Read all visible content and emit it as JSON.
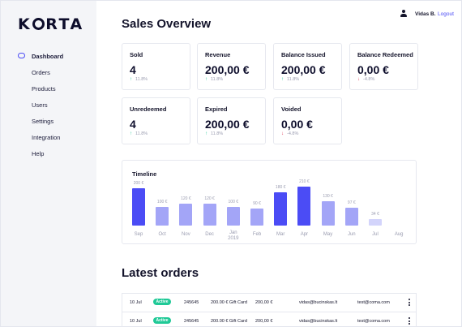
{
  "brand": {
    "name_prefix": "K",
    "name_suffix": "RTA"
  },
  "sidebar": {
    "items": [
      {
        "label": "Dashboard",
        "active": true
      },
      {
        "label": "Orders"
      },
      {
        "label": "Products"
      },
      {
        "label": "Users"
      },
      {
        "label": "Settings"
      },
      {
        "label": "Integration"
      },
      {
        "label": "Help"
      }
    ]
  },
  "header": {
    "user_name": "Vidas B.",
    "logout_label": "Logout"
  },
  "page_title": "Sales Overview",
  "stats": [
    {
      "label": "Sold",
      "value": "4",
      "change": "11.8%",
      "trend": "up"
    },
    {
      "label": "Revenue",
      "value": "200,00 €",
      "change": "11.8%",
      "trend": "up"
    },
    {
      "label": "Balance Issued",
      "value": "200,00 €",
      "change": "11.8%",
      "trend": "up"
    },
    {
      "label": "Balance Redeemed",
      "value": "0,00 €",
      "change": "-4.8%",
      "trend": "down"
    },
    {
      "label": "Unredeemed",
      "value": "4",
      "change": "11.8%",
      "trend": "up"
    },
    {
      "label": "Expired",
      "value": "200,00 €",
      "change": "11.8%",
      "trend": "up"
    },
    {
      "label": "Voided",
      "value": "0,00 €",
      "change": "-4.8%",
      "trend": "down"
    }
  ],
  "icons": {
    "trend_up": "arrow-up-icon",
    "trend_down": "arrow-down-icon",
    "user": "user-icon",
    "more": "more-vertical-icon",
    "nav": "dashboard-icon"
  },
  "colors": {
    "accent": "#4b4cf5",
    "bar_strong": "#4b4cf5",
    "bar_light": "#a3a5f7",
    "bar_faint": "#d3d4fb",
    "positive": "#20c997",
    "negative": "#e0344f"
  },
  "timeline": {
    "title": "Timeline"
  },
  "chart_data": {
    "type": "bar",
    "categories": [
      "Sep",
      "Oct",
      "Nov",
      "Dec",
      "Jan 2019",
      "Feb",
      "Mar",
      "Apr",
      "May",
      "Jun",
      "Jul",
      "Aug"
    ],
    "values": [
      200,
      100,
      120,
      120,
      100,
      90,
      180,
      210,
      130,
      97,
      34,
      null
    ],
    "value_labels": [
      "200 €",
      "100 €",
      "120 €",
      "120 €",
      "100 €",
      "90 €",
      "180 €",
      "210 €",
      "130 €",
      "97 €",
      "34 €",
      ""
    ],
    "emphasis": [
      "strong",
      "light",
      "light",
      "light",
      "light",
      "light",
      "strong",
      "strong",
      "light",
      "light",
      "faint",
      "none"
    ],
    "title": "Timeline",
    "xlabel": "",
    "ylabel": "",
    "ylim": [
      0,
      210
    ]
  },
  "orders": {
    "title": "Latest orders",
    "rows": [
      {
        "date": "10 Jul",
        "status": "Active",
        "code": "245645",
        "product": "200.00 € Gift Card",
        "amount": "200,00 €",
        "buyer": "vidas@bucinskas.lt",
        "recipient": "test@coma.com"
      },
      {
        "date": "10 Jul",
        "status": "Active",
        "code": "245645",
        "product": "200.00 € Gift Card",
        "amount": "200,00 €",
        "buyer": "vidas@bucinskas.lt",
        "recipient": "test@coma.com"
      }
    ]
  }
}
